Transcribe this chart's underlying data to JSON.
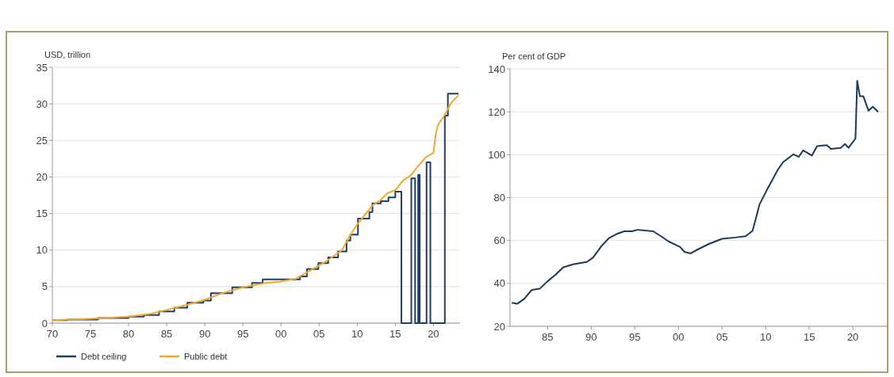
{
  "chart_data": [
    {
      "type": "line",
      "ylabel": "USD, trillion",
      "xlim": [
        1970,
        2023.5
      ],
      "ylim": [
        0,
        35
      ],
      "xticks": [
        {
          "value": 1970,
          "label": "70"
        },
        {
          "value": 1975,
          "label": "75"
        },
        {
          "value": 1980,
          "label": "80"
        },
        {
          "value": 1985,
          "label": "85"
        },
        {
          "value": 1990,
          "label": "90"
        },
        {
          "value": 1995,
          "label": "95"
        },
        {
          "value": 2000,
          "label": "00"
        },
        {
          "value": 2005,
          "label": "05"
        },
        {
          "value": 2010,
          "label": "10"
        },
        {
          "value": 2015,
          "label": "15"
        },
        {
          "value": 2020,
          "label": "20"
        }
      ],
      "yticks": [
        0,
        5,
        10,
        15,
        20,
        25,
        30,
        35
      ],
      "grid": "y",
      "legend": "bottom",
      "series": [
        {
          "name": "Debt ceiling",
          "type": "step",
          "color": "#1f3f66",
          "x": [
            1970,
            1972,
            1976,
            1980,
            1982,
            1984,
            1986,
            1987.7,
            1989.8,
            1990.8,
            1993.6,
            1996.2,
            1997.6,
            2002.5,
            2003.4,
            2004.9,
            2006.2,
            2007.5,
            2008.6,
            2009.1,
            2010.1,
            2011.6,
            2012,
            2013.1,
            2014.1,
            2015,
            2015.8,
            2017.1,
            2017.6,
            2018,
            2018.2,
            2019.1,
            2019.6,
            2021.5,
            2021.9,
            2023.3
          ],
          "values": [
            0.4,
            0.5,
            0.7,
            0.9,
            1.1,
            1.6,
            2.1,
            2.8,
            3.1,
            4.1,
            4.9,
            5.5,
            6,
            6.4,
            7.4,
            8.2,
            9,
            9.8,
            11.3,
            12.1,
            14.3,
            15.2,
            16.4,
            16.7,
            17.2,
            18,
            0,
            19.8,
            0,
            20.3,
            0,
            22,
            0,
            28.4,
            31.4,
            31.4
          ]
        },
        {
          "name": "Public debt",
          "color": "#f0a830",
          "x": [
            1970,
            1975,
            1980,
            1983,
            1985,
            1988,
            1990,
            1992,
            1995,
            1998,
            2000,
            2002,
            2004,
            2006,
            2008,
            2009,
            2010,
            2011,
            2012,
            2013,
            2014,
            2015,
            2016,
            2017,
            2018,
            2019,
            2020,
            2020.3,
            2020.6,
            2021.5,
            2022.3,
            2023.3
          ],
          "values": [
            0.4,
            0.6,
            0.9,
            1.3,
            1.8,
            2.6,
            3.2,
            4,
            4.9,
            5.5,
            5.7,
            6.1,
            7.3,
            8.5,
            10,
            11.9,
            13.5,
            14.8,
            16.1,
            16.8,
            17.8,
            18.2,
            19.5,
            20.2,
            21.5,
            22.7,
            23.3,
            25.8,
            27.1,
            28.5,
            30.1,
            31.2
          ]
        }
      ]
    },
    {
      "type": "line",
      "ylabel": "Per cent of GDP",
      "xlim": [
        1980.7,
        2023.9
      ],
      "ylim": [
        20,
        140
      ],
      "xticks": [
        {
          "value": 1985,
          "label": "85"
        },
        {
          "value": 1990,
          "label": "90"
        },
        {
          "value": 1995,
          "label": "95"
        },
        {
          "value": 2000,
          "label": "00"
        },
        {
          "value": 2005,
          "label": "05"
        },
        {
          "value": 2010,
          "label": "10"
        },
        {
          "value": 2015,
          "label": "15"
        },
        {
          "value": 2020,
          "label": "20"
        }
      ],
      "yticks": [
        20,
        40,
        60,
        80,
        100,
        120,
        140
      ],
      "grid": "y",
      "series": [
        {
          "color": "#1a3a5c",
          "x": [
            1980.9,
            1981.5,
            1982.3,
            1983.2,
            1984.1,
            1985,
            1985.9,
            1986.8,
            1988,
            1989.5,
            1990.2,
            1991.1,
            1992,
            1992.9,
            1993.8,
            1994.7,
            1995.3,
            1997.1,
            1998,
            1998.9,
            2000.2,
            2000.7,
            2001.4,
            2002.3,
            2003.5,
            2005,
            2006.5,
            2007.7,
            2008.5,
            2009.3,
            2010.2,
            2011.4,
            2012,
            2013.2,
            2013.8,
            2014.3,
            2015.3,
            2015.9,
            2017,
            2017.5,
            2018.6,
            2019.1,
            2019.5,
            2020.3,
            2020.5,
            2020.8,
            2021.2,
            2021.8,
            2022.3,
            2022.9
          ],
          "values": [
            31,
            30.5,
            32.7,
            37,
            37.5,
            41,
            44,
            47.5,
            49,
            50,
            52,
            57,
            61,
            63,
            64.3,
            64.3,
            65,
            64.3,
            62,
            59.5,
            57,
            54.7,
            54,
            56,
            58.4,
            60.8,
            61.4,
            62,
            64.5,
            76.8,
            84,
            93,
            96.5,
            100.2,
            99,
            102,
            99.6,
            104,
            104.5,
            102.7,
            103.2,
            105,
            103.2,
            107.5,
            134.5,
            127.3,
            127.3,
            120.5,
            122.4,
            120
          ]
        }
      ]
    }
  ]
}
